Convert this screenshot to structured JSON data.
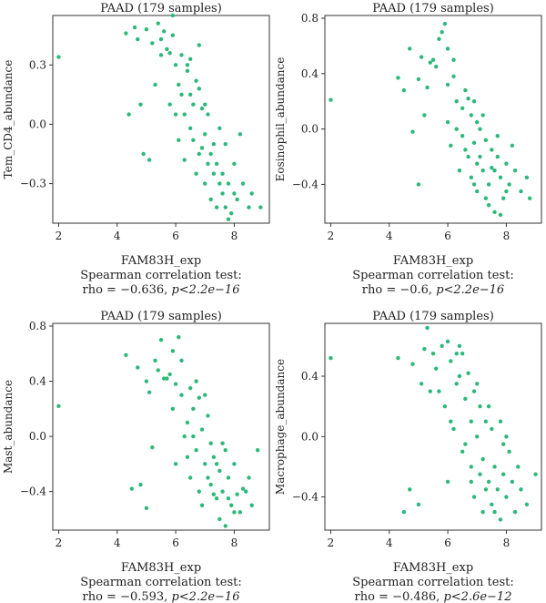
{
  "chart_data": [
    {
      "type": "scatter",
      "title": "PAAD (179 samples)",
      "xlabel": "FAM83H_exp",
      "ylabel": "Tem_CD4_abundance",
      "stat_line1": "Spearman correlation test:",
      "stat_rho": "rho = −0.636, ",
      "stat_p": "p<2.2e−16",
      "xlim": [
        1.8,
        9.2
      ],
      "ylim": [
        -0.5,
        0.55
      ],
      "xticks": [
        2,
        4,
        6,
        8
      ],
      "xtick_labels": [
        "2",
        "4",
        "6",
        "8"
      ],
      "yticks": [
        -0.3,
        0.0,
        0.3
      ],
      "ytick_labels": [
        "−0.3",
        "0.0",
        "0.3"
      ],
      "point_color": "#2db87a",
      "points": [
        [
          2.0,
          0.34
        ],
        [
          4.3,
          0.46
        ],
        [
          4.4,
          0.05
        ],
        [
          4.6,
          0.49
        ],
        [
          4.7,
          0.43
        ],
        [
          4.8,
          0.1
        ],
        [
          4.9,
          -0.15
        ],
        [
          5.0,
          0.48
        ],
        [
          5.1,
          -0.18
        ],
        [
          5.2,
          0.41
        ],
        [
          5.3,
          0.2
        ],
        [
          5.4,
          0.51
        ],
        [
          5.5,
          0.43
        ],
        [
          5.6,
          0.47
        ],
        [
          5.7,
          0.38
        ],
        [
          5.8,
          0.36
        ],
        [
          5.9,
          0.45
        ],
        [
          6.0,
          0.3
        ],
        [
          6.0,
          0.05
        ],
        [
          6.1,
          -0.08
        ],
        [
          6.2,
          0.35
        ],
        [
          6.2,
          0.15
        ],
        [
          6.3,
          -0.18
        ],
        [
          6.4,
          0.27
        ],
        [
          6.5,
          0.33
        ],
        [
          6.5,
          -0.02
        ],
        [
          6.6,
          0.1
        ],
        [
          6.7,
          0.22
        ],
        [
          6.7,
          -0.25
        ],
        [
          6.8,
          0.18
        ],
        [
          6.8,
          0.4
        ],
        [
          6.9,
          0.08
        ],
        [
          6.9,
          -0.12
        ],
        [
          7.0,
          -0.05
        ],
        [
          7.0,
          -0.3
        ],
        [
          7.1,
          0.05
        ],
        [
          7.2,
          -0.15
        ],
        [
          7.2,
          -0.38
        ],
        [
          7.3,
          -0.1
        ],
        [
          7.4,
          -0.2
        ],
        [
          7.4,
          -0.42
        ],
        [
          7.5,
          -0.02
        ],
        [
          7.6,
          -0.25
        ],
        [
          7.6,
          -0.35
        ],
        [
          7.7,
          -0.1
        ],
        [
          7.8,
          -0.3
        ],
        [
          7.9,
          -0.45
        ],
        [
          8.0,
          -0.2
        ],
        [
          8.1,
          -0.38
        ],
        [
          8.2,
          -0.05
        ],
        [
          8.3,
          -0.3
        ],
        [
          8.5,
          -0.42
        ],
        [
          8.6,
          -0.35
        ],
        [
          8.9,
          -0.42
        ],
        [
          5.5,
          0.35
        ],
        [
          5.8,
          0.1
        ],
        [
          6.3,
          0.05
        ],
        [
          6.6,
          -0.08
        ],
        [
          7.0,
          0.1
        ],
        [
          7.3,
          -0.25
        ],
        [
          7.7,
          -0.42
        ],
        [
          8.0,
          -0.35
        ],
        [
          6.1,
          0.2
        ],
        [
          6.8,
          -0.15
        ],
        [
          7.5,
          -0.3
        ],
        [
          5.9,
          0.55
        ],
        [
          6.4,
          0.3
        ],
        [
          7.1,
          -0.2
        ],
        [
          7.8,
          -0.48
        ],
        [
          6.5,
          0.15
        ]
      ]
    },
    {
      "type": "scatter",
      "title": "PAAD (179 samples)",
      "xlabel": "FAM83H_exp",
      "ylabel": "Eosinophil_abundance",
      "stat_line1": "Spearman correlation test:",
      "stat_rho": "rho = −0.6, ",
      "stat_p": "p<2.2e−16",
      "xlim": [
        1.8,
        9.2
      ],
      "ylim": [
        -0.68,
        0.82
      ],
      "xticks": [
        2,
        4,
        6,
        8
      ],
      "xtick_labels": [
        "2",
        "4",
        "6",
        "8"
      ],
      "yticks": [
        -0.4,
        0.0,
        0.4,
        0.8
      ],
      "ytick_labels": [
        "−0.4",
        "0.0",
        "0.4",
        "0.8"
      ],
      "point_color": "#2db87a",
      "points": [
        [
          2.0,
          0.21
        ],
        [
          4.3,
          0.37
        ],
        [
          4.5,
          0.28
        ],
        [
          4.7,
          0.58
        ],
        [
          4.8,
          -0.02
        ],
        [
          5.0,
          0.36
        ],
        [
          5.0,
          -0.4
        ],
        [
          5.1,
          0.52
        ],
        [
          5.2,
          0.1
        ],
        [
          5.3,
          0.3
        ],
        [
          5.5,
          0.5
        ],
        [
          5.6,
          0.45
        ],
        [
          5.7,
          0.65
        ],
        [
          5.8,
          0.7
        ],
        [
          5.9,
          0.76
        ],
        [
          6.0,
          0.32
        ],
        [
          6.0,
          0.05
        ],
        [
          6.1,
          -0.12
        ],
        [
          6.2,
          0.5
        ],
        [
          6.3,
          0.2
        ],
        [
          6.4,
          -0.3
        ],
        [
          6.5,
          0.15
        ],
        [
          6.5,
          -0.05
        ],
        [
          6.6,
          0.28
        ],
        [
          6.7,
          -0.2
        ],
        [
          6.8,
          0.1
        ],
        [
          6.8,
          -0.35
        ],
        [
          6.9,
          0.2
        ],
        [
          6.9,
          -0.1
        ],
        [
          7.0,
          0.05
        ],
        [
          7.0,
          -0.45
        ],
        [
          7.1,
          -0.2
        ],
        [
          7.2,
          0.1
        ],
        [
          7.2,
          -0.3
        ],
        [
          7.3,
          -0.08
        ],
        [
          7.4,
          -0.4
        ],
        [
          7.4,
          -0.55
        ],
        [
          7.5,
          -0.15
        ],
        [
          7.6,
          -0.3
        ],
        [
          7.6,
          -0.6
        ],
        [
          7.7,
          -0.05
        ],
        [
          7.8,
          -0.35
        ],
        [
          7.9,
          -0.5
        ],
        [
          8.0,
          -0.25
        ],
        [
          8.1,
          -0.4
        ],
        [
          8.2,
          -0.12
        ],
        [
          8.3,
          -0.3
        ],
        [
          8.5,
          -0.45
        ],
        [
          8.7,
          -0.35
        ],
        [
          8.8,
          -0.5
        ],
        [
          5.4,
          0.48
        ],
        [
          6.0,
          0.58
        ],
        [
          6.3,
          0.0
        ],
        [
          6.7,
          0.22
        ],
        [
          7.0,
          -0.25
        ],
        [
          7.3,
          -0.5
        ],
        [
          7.7,
          -0.2
        ],
        [
          8.0,
          -0.45
        ],
        [
          6.2,
          0.38
        ],
        [
          6.9,
          -0.4
        ],
        [
          7.5,
          -0.28
        ],
        [
          7.8,
          -0.62
        ],
        [
          6.6,
          -0.15
        ],
        [
          7.1,
          0.0
        ]
      ]
    },
    {
      "type": "scatter",
      "title": "PAAD (179 samples)",
      "xlabel": "FAM83H_exp",
      "ylabel": "Mast_abundance",
      "stat_line1": "Spearman correlation test:",
      "stat_rho": "rho = −0.593, ",
      "stat_p": "p<2.2e−16",
      "xlim": [
        1.8,
        9.2
      ],
      "ylim": [
        -0.68,
        0.82
      ],
      "xticks": [
        2,
        4,
        6,
        8
      ],
      "xtick_labels": [
        "2",
        "4",
        "6",
        "8"
      ],
      "yticks": [
        -0.4,
        0.0,
        0.4,
        0.8
      ],
      "ytick_labels": [
        "−0.4",
        "0.0",
        "0.4",
        "0.8"
      ],
      "point_color": "#2db87a",
      "points": [
        [
          2.0,
          0.22
        ],
        [
          4.3,
          0.59
        ],
        [
          4.5,
          -0.38
        ],
        [
          4.7,
          0.5
        ],
        [
          4.8,
          -0.35
        ],
        [
          5.0,
          0.4
        ],
        [
          5.0,
          -0.52
        ],
        [
          5.1,
          0.32
        ],
        [
          5.2,
          -0.08
        ],
        [
          5.3,
          0.55
        ],
        [
          5.4,
          0.48
        ],
        [
          5.5,
          0.7
        ],
        [
          5.6,
          0.42
        ],
        [
          5.8,
          0.45
        ],
        [
          5.9,
          0.62
        ],
        [
          6.0,
          0.38
        ],
        [
          6.0,
          -0.2
        ],
        [
          6.1,
          0.72
        ],
        [
          6.2,
          0.3
        ],
        [
          6.3,
          0.0
        ],
        [
          6.4,
          0.1
        ],
        [
          6.5,
          0.35
        ],
        [
          6.5,
          -0.3
        ],
        [
          6.6,
          0.2
        ],
        [
          6.7,
          -0.1
        ],
        [
          6.8,
          0.28
        ],
        [
          6.8,
          -0.4
        ],
        [
          6.9,
          0.05
        ],
        [
          6.9,
          -0.5
        ],
        [
          7.0,
          -0.2
        ],
        [
          7.1,
          0.15
        ],
        [
          7.2,
          -0.05
        ],
        [
          7.2,
          -0.35
        ],
        [
          7.3,
          -0.15
        ],
        [
          7.4,
          -0.45
        ],
        [
          7.5,
          -0.25
        ],
        [
          7.5,
          -0.6
        ],
        [
          7.6,
          -0.4
        ],
        [
          7.7,
          -0.1
        ],
        [
          7.7,
          -0.65
        ],
        [
          7.8,
          -0.3
        ],
        [
          7.9,
          -0.5
        ],
        [
          8.0,
          -0.2
        ],
        [
          8.1,
          -0.42
        ],
        [
          8.2,
          -0.55
        ],
        [
          8.4,
          -0.4
        ],
        [
          8.5,
          -0.3
        ],
        [
          8.6,
          -0.5
        ],
        [
          8.8,
          -0.1
        ],
        [
          5.7,
          0.42
        ],
        [
          6.2,
          0.55
        ],
        [
          6.6,
          0.0
        ],
        [
          7.0,
          0.3
        ],
        [
          7.3,
          -0.42
        ],
        [
          7.8,
          -0.45
        ],
        [
          6.4,
          -0.15
        ],
        [
          7.1,
          -0.3
        ],
        [
          7.6,
          -0.05
        ],
        [
          8.3,
          -0.38
        ],
        [
          5.9,
          0.2
        ],
        [
          6.7,
          0.4
        ],
        [
          7.4,
          -0.2
        ],
        [
          8.0,
          -0.55
        ]
      ]
    },
    {
      "type": "scatter",
      "title": "PAAD (179 samples)",
      "xlabel": "FAM83H_exp",
      "ylabel": "Macrophage_abundance",
      "stat_line1": "Spearman correlation test:",
      "stat_rho": "rho = −0.486, ",
      "stat_p": "p<2.6e−12",
      "xlim": [
        1.8,
        9.2
      ],
      "ylim": [
        -0.62,
        0.75
      ],
      "xticks": [
        2,
        4,
        6,
        8
      ],
      "xtick_labels": [
        "2",
        "4",
        "6",
        "8"
      ],
      "yticks": [
        -0.4,
        0.0,
        0.4
      ],
      "ytick_labels": [
        "−0.4",
        "0.0",
        "0.4"
      ],
      "point_color": "#2db87a",
      "points": [
        [
          2.0,
          0.52
        ],
        [
          4.3,
          0.52
        ],
        [
          4.5,
          -0.5
        ],
        [
          4.7,
          -0.35
        ],
        [
          4.8,
          0.48
        ],
        [
          5.0,
          -0.45
        ],
        [
          5.1,
          0.35
        ],
        [
          5.2,
          0.58
        ],
        [
          5.3,
          0.72
        ],
        [
          5.4,
          0.3
        ],
        [
          5.5,
          0.55
        ],
        [
          5.6,
          0.45
        ],
        [
          5.8,
          0.6
        ],
        [
          5.9,
          0.2
        ],
        [
          6.0,
          0.63
        ],
        [
          6.0,
          -0.3
        ],
        [
          6.1,
          0.5
        ],
        [
          6.2,
          0.05
        ],
        [
          6.3,
          0.35
        ],
        [
          6.4,
          0.4
        ],
        [
          6.5,
          -0.1
        ],
        [
          6.5,
          0.55
        ],
        [
          6.6,
          0.25
        ],
        [
          6.7,
          0.42
        ],
        [
          6.8,
          -0.2
        ],
        [
          6.8,
          0.1
        ],
        [
          6.9,
          0.3
        ],
        [
          6.9,
          -0.4
        ],
        [
          7.0,
          0.0
        ],
        [
          7.1,
          0.2
        ],
        [
          7.2,
          -0.15
        ],
        [
          7.2,
          -0.5
        ],
        [
          7.3,
          0.1
        ],
        [
          7.4,
          -0.3
        ],
        [
          7.5,
          0.05
        ],
        [
          7.5,
          -0.45
        ],
        [
          7.6,
          -0.2
        ],
        [
          7.7,
          -0.35
        ],
        [
          7.8,
          0.1
        ],
        [
          7.9,
          -0.25
        ],
        [
          8.0,
          -0.4
        ],
        [
          8.1,
          -0.1
        ],
        [
          8.2,
          -0.3
        ],
        [
          8.3,
          -0.5
        ],
        [
          8.4,
          -0.2
        ],
        [
          8.5,
          -0.35
        ],
        [
          8.7,
          -0.45
        ],
        [
          9.0,
          -0.25
        ],
        [
          5.7,
          0.3
        ],
        [
          6.3,
          0.55
        ],
        [
          6.6,
          -0.05
        ],
        [
          7.0,
          0.35
        ],
        [
          7.3,
          -0.35
        ],
        [
          7.8,
          -0.55
        ],
        [
          8.0,
          0.0
        ],
        [
          6.1,
          0.1
        ],
        [
          6.8,
          -0.3
        ],
        [
          7.4,
          0.2
        ],
        [
          7.9,
          -0.05
        ],
        [
          6.4,
          0.6
        ],
        [
          7.1,
          -0.25
        ],
        [
          7.6,
          -0.5
        ]
      ]
    }
  ]
}
